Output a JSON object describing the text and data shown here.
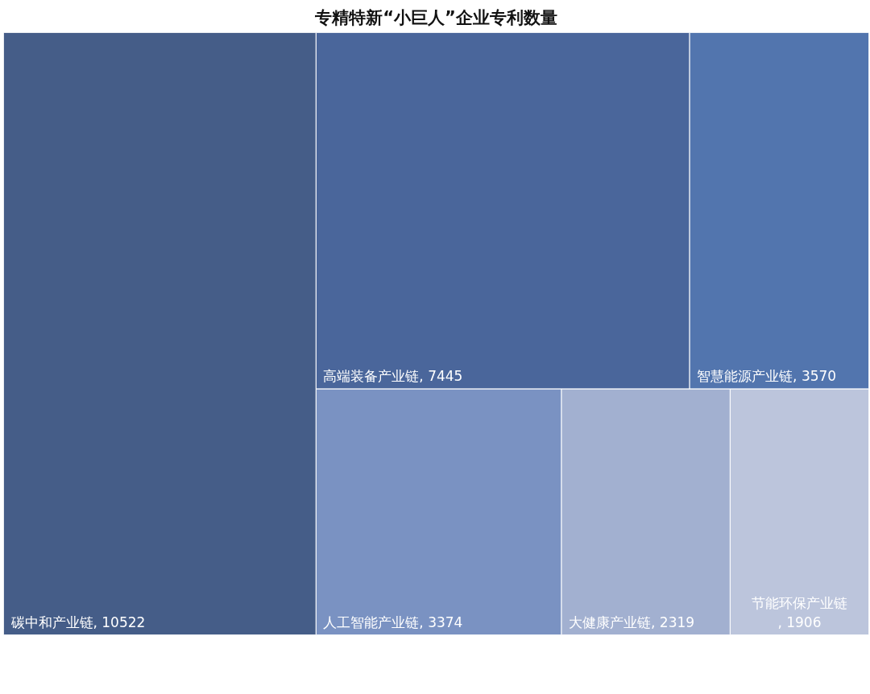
{
  "chart_data": {
    "type": "other",
    "title": "专精特新“小巨人”企业专利数量",
    "categories": [
      "碳中和产业链",
      "高端装备产业链",
      "智慧能源产业链",
      "人工智能产业链",
      "大健康产业链",
      "节能环保产业链"
    ],
    "values": [
      10522,
      7445,
      3570,
      3374,
      2319,
      1906
    ],
    "value_labels": [
      ", 10522",
      ", 7445",
      ", 3570",
      ", 3374",
      ", 2319",
      ", 1906"
    ],
    "colors": [
      "#455d88",
      "#4a669b",
      "#5275ae",
      "#7a92c2",
      "#a2b0d0",
      "#bcc5dc"
    ]
  }
}
